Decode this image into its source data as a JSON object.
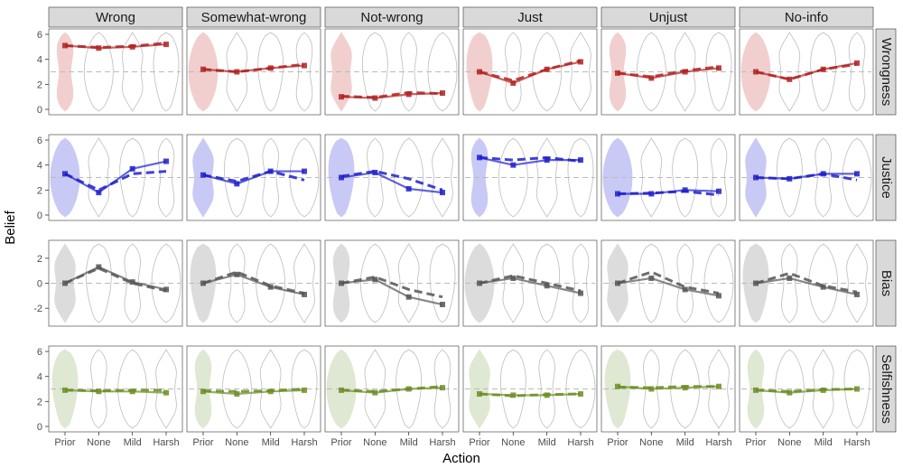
{
  "chart_data": {
    "type": "line",
    "xlabel": "Action",
    "ylabel": "Belief",
    "categories": [
      "Prior",
      "None",
      "Mild",
      "Harsh"
    ],
    "columns": [
      "Wrong",
      "Somewhat-wrong",
      "Not-wrong",
      "Just",
      "Unjust",
      "No-info"
    ],
    "rows": [
      {
        "name": "Wrongness",
        "color": "#b22222",
        "fill": "#f2cfcf",
        "ylim": [
          0,
          6
        ],
        "ticks": [
          0,
          2,
          4,
          6
        ]
      },
      {
        "name": "Justice",
        "color": "#1f1fcc",
        "fill": "#c9c9f5",
        "ylim": [
          0,
          6
        ],
        "ticks": [
          0,
          2,
          4,
          6
        ]
      },
      {
        "name": "Bias",
        "color": "#555555",
        "fill": "#dcdcdc",
        "ylim": [
          -3,
          3
        ],
        "ticks": [
          -2,
          0,
          2
        ]
      },
      {
        "name": "Selfishness",
        "color": "#6b8e23",
        "fill": "#dfe8d2",
        "ylim": [
          0,
          6
        ],
        "ticks": [
          0,
          2,
          4,
          6
        ]
      }
    ],
    "reference_lines": {
      "Wrongness": 3,
      "Justice": 3,
      "Bias": 0,
      "Selfishness": 3
    },
    "panels": [
      {
        "row": "Wrongness",
        "col": "Wrong",
        "solid": [
          5.1,
          4.9,
          5.0,
          5.2
        ],
        "dashed": [
          5.1,
          4.95,
          5.05,
          5.3
        ]
      },
      {
        "row": "Wrongness",
        "col": "Somewhat-wrong",
        "solid": [
          3.2,
          3.0,
          3.3,
          3.5
        ],
        "dashed": [
          3.2,
          3.0,
          3.3,
          3.6
        ]
      },
      {
        "row": "Wrongness",
        "col": "Not-wrong",
        "solid": [
          1.0,
          0.9,
          1.2,
          1.3
        ],
        "dashed": [
          1.05,
          0.95,
          1.35,
          1.25
        ]
      },
      {
        "row": "Wrongness",
        "col": "Just",
        "solid": [
          3.0,
          2.1,
          3.2,
          3.8
        ],
        "dashed": [
          3.0,
          2.3,
          3.2,
          3.9
        ]
      },
      {
        "row": "Wrongness",
        "col": "Unjust",
        "solid": [
          2.9,
          2.5,
          3.0,
          3.3
        ],
        "dashed": [
          2.9,
          2.6,
          3.1,
          3.4
        ]
      },
      {
        "row": "Wrongness",
        "col": "No-info",
        "solid": [
          3.0,
          2.4,
          3.2,
          3.7
        ],
        "dashed": [
          3.0,
          2.4,
          3.2,
          3.6
        ]
      },
      {
        "row": "Justice",
        "col": "Wrong",
        "solid": [
          3.3,
          1.8,
          3.7,
          4.3
        ],
        "dashed": [
          3.3,
          2.0,
          3.3,
          3.5
        ]
      },
      {
        "row": "Justice",
        "col": "Somewhat-wrong",
        "solid": [
          3.2,
          2.5,
          3.5,
          3.5
        ],
        "dashed": [
          3.2,
          2.7,
          3.5,
          2.8
        ]
      },
      {
        "row": "Justice",
        "col": "Not-wrong",
        "solid": [
          3.0,
          3.4,
          2.1,
          1.8
        ],
        "dashed": [
          3.1,
          3.5,
          2.9,
          2.0
        ]
      },
      {
        "row": "Justice",
        "col": "Just",
        "solid": [
          4.6,
          4.0,
          4.4,
          4.4
        ],
        "dashed": [
          4.6,
          4.4,
          4.6,
          4.3
        ]
      },
      {
        "row": "Justice",
        "col": "Unjust",
        "solid": [
          1.7,
          1.7,
          2.0,
          1.9
        ],
        "dashed": [
          1.7,
          1.75,
          1.9,
          1.6
        ]
      },
      {
        "row": "Justice",
        "col": "No-info",
        "solid": [
          3.0,
          2.9,
          3.3,
          3.3
        ],
        "dashed": [
          3.0,
          2.9,
          3.3,
          2.8
        ]
      },
      {
        "row": "Bias",
        "col": "Wrong",
        "solid": [
          0.0,
          1.3,
          0.1,
          -0.5
        ],
        "dashed": [
          0.0,
          1.2,
          0.0,
          -0.6
        ]
      },
      {
        "row": "Bias",
        "col": "Somewhat-wrong",
        "solid": [
          0.0,
          0.7,
          -0.3,
          -0.9
        ],
        "dashed": [
          0.0,
          0.9,
          -0.2,
          -0.8
        ]
      },
      {
        "row": "Bias",
        "col": "Not-wrong",
        "solid": [
          0.0,
          0.3,
          -1.1,
          -1.7
        ],
        "dashed": [
          0.0,
          0.5,
          -0.5,
          -1.1
        ]
      },
      {
        "row": "Bias",
        "col": "Just",
        "solid": [
          0.0,
          0.4,
          -0.2,
          -0.8
        ],
        "dashed": [
          0.0,
          0.6,
          0.0,
          -0.6
        ]
      },
      {
        "row": "Bias",
        "col": "Unjust",
        "solid": [
          0.0,
          0.4,
          -0.5,
          -1.0
        ],
        "dashed": [
          0.0,
          0.9,
          -0.3,
          -0.8
        ]
      },
      {
        "row": "Bias",
        "col": "No-info",
        "solid": [
          0.0,
          0.4,
          -0.3,
          -0.9
        ],
        "dashed": [
          0.0,
          0.8,
          -0.2,
          -0.7
        ]
      },
      {
        "row": "Selfishness",
        "col": "Wrong",
        "solid": [
          2.9,
          2.8,
          2.8,
          2.7
        ],
        "dashed": [
          2.9,
          2.85,
          2.9,
          2.9
        ]
      },
      {
        "row": "Selfishness",
        "col": "Somewhat-wrong",
        "solid": [
          2.8,
          2.6,
          2.8,
          2.9
        ],
        "dashed": [
          2.85,
          2.8,
          2.85,
          3.0
        ]
      },
      {
        "row": "Selfishness",
        "col": "Not-wrong",
        "solid": [
          2.9,
          2.7,
          3.0,
          3.1
        ],
        "dashed": [
          2.9,
          2.8,
          3.0,
          3.2
        ]
      },
      {
        "row": "Selfishness",
        "col": "Just",
        "solid": [
          2.6,
          2.5,
          2.5,
          2.6
        ],
        "dashed": [
          2.6,
          2.45,
          2.55,
          2.6
        ]
      },
      {
        "row": "Selfishness",
        "col": "Unjust",
        "solid": [
          3.2,
          3.0,
          3.1,
          3.2
        ],
        "dashed": [
          3.15,
          3.1,
          3.2,
          3.2
        ]
      },
      {
        "row": "Selfishness",
        "col": "No-info",
        "solid": [
          2.9,
          2.7,
          2.9,
          3.0
        ],
        "dashed": [
          2.9,
          2.8,
          2.95,
          3.0
        ]
      }
    ],
    "legend": "none",
    "grid": false
  }
}
